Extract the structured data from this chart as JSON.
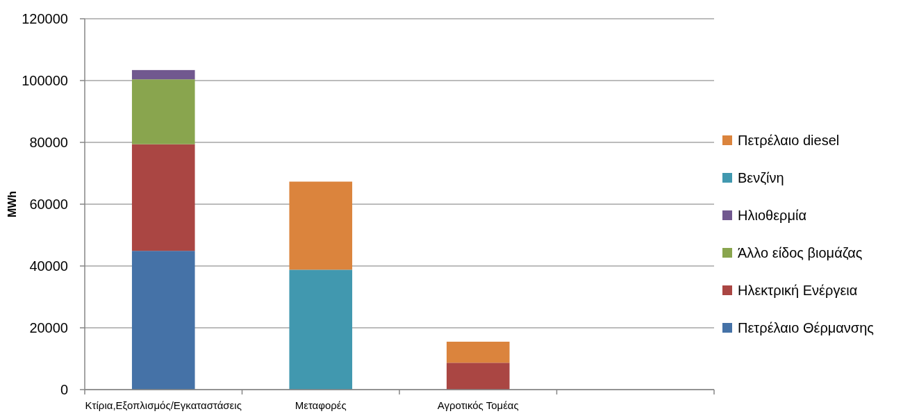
{
  "chart_data": {
    "type": "bar",
    "stacked": true,
    "ylabel": "MWh",
    "categories": [
      "Κτίρια,Εξοπλισμός/Εγκαταστάσεις",
      "Μεταφορές",
      "Αγροτικός Τομέας",
      null
    ],
    "series": [
      {
        "name": "Πετρέλαιο Θέρμανσης",
        "color": "#4572a7",
        "values": [
          44900,
          null,
          null,
          null
        ]
      },
      {
        "name": "Ηλεκτρική Ενέργεια",
        "color": "#aa4643",
        "values": [
          34500,
          null,
          8700,
          null
        ]
      },
      {
        "name": "Άλλο είδος βιομάζας",
        "color": "#89a54e",
        "values": [
          21000,
          null,
          null,
          null
        ]
      },
      {
        "name": "Ηλιοθερμία",
        "color": "#71588f",
        "values": [
          3000,
          null,
          null,
          null
        ]
      },
      {
        "name": "Βενζίνη",
        "color": "#4198af",
        "values": [
          null,
          38800,
          null,
          null
        ]
      },
      {
        "name": "Πετρέλαιο diesel",
        "color": "#db843d",
        "values": [
          null,
          28500,
          6800,
          null
        ]
      }
    ],
    "ylim": [
      0,
      120000
    ],
    "yticks": [
      0,
      20000,
      40000,
      60000,
      80000,
      100000,
      120000
    ],
    "grid": "y",
    "legend": "right"
  }
}
